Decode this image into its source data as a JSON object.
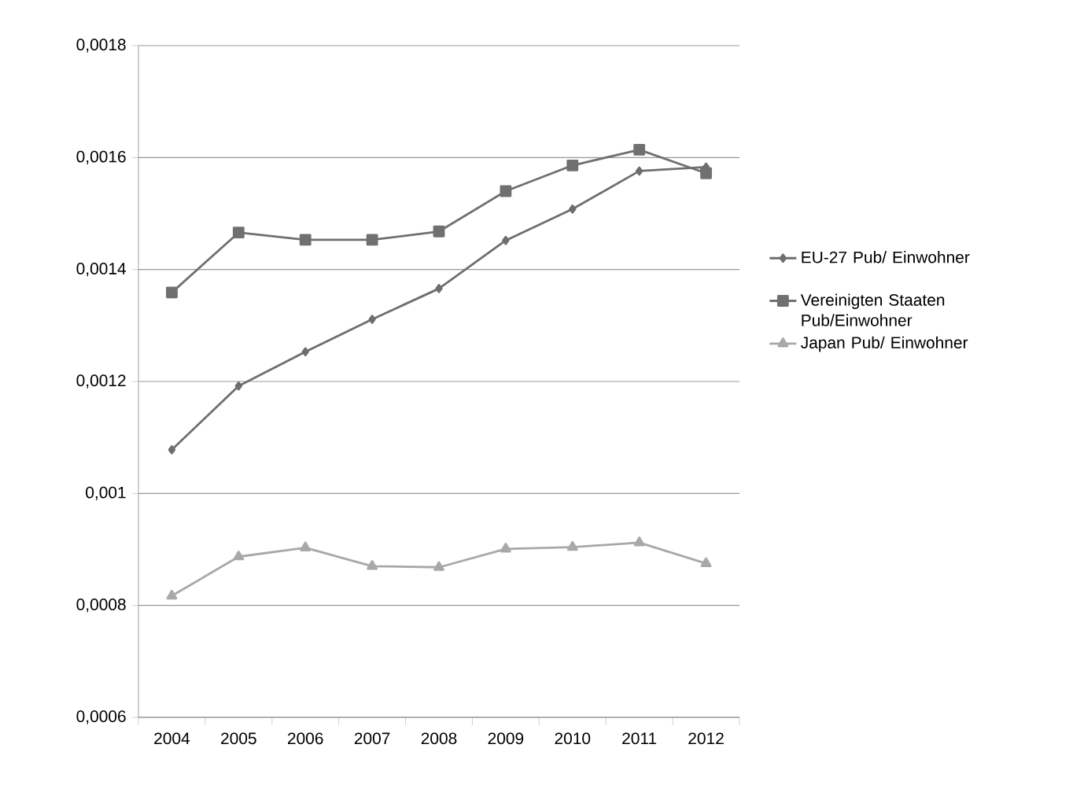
{
  "chart_data": {
    "type": "line",
    "categories": [
      "2004",
      "2005",
      "2006",
      "2007",
      "2008",
      "2009",
      "2010",
      "2011",
      "2012"
    ],
    "series": [
      {
        "name": "EU-27 Pub/ Einwohner",
        "color": "#6e6e6e",
        "marker": "diamond",
        "values": [
          0.001078,
          0.001192,
          0.001253,
          0.001311,
          0.001366,
          0.001452,
          0.001508,
          0.001576,
          0.001583
        ]
      },
      {
        "name": "Vereinigten Staaten Pub/Einwohner",
        "color": "#707070",
        "marker": "square",
        "values": [
          0.001359,
          0.001466,
          0.001453,
          0.001453,
          0.001468,
          0.00154,
          0.001586,
          0.001614,
          0.001572
        ]
      },
      {
        "name": "Japan Pub/ Einwohner",
        "color": "#a8a8a8",
        "marker": "triangle",
        "values": [
          0.000817,
          0.000887,
          0.000903,
          0.00087,
          0.000868,
          0.000901,
          0.000904,
          0.000912,
          0.000875
        ]
      }
    ],
    "ylim": [
      0.0006,
      0.0018
    ],
    "yticks": [
      {
        "value": 0.0006,
        "label": "0,0006"
      },
      {
        "value": 0.0008,
        "label": "0,0008"
      },
      {
        "value": 0.001,
        "label": "0,001"
      },
      {
        "value": 0.0012,
        "label": "0,0012"
      },
      {
        "value": 0.0014,
        "label": "0,0014"
      },
      {
        "value": 0.0016,
        "label": "0,0016"
      },
      {
        "value": 0.0018,
        "label": "0,0018"
      }
    ],
    "grid": "y",
    "legend": "right",
    "line_style": "solid"
  }
}
